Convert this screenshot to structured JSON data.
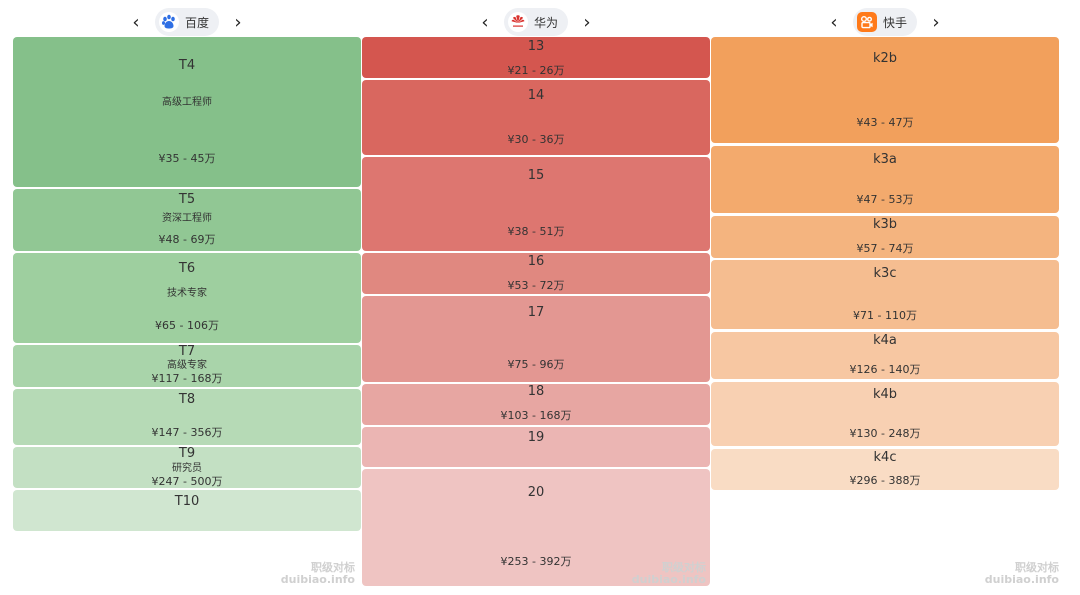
{
  "columns": [
    {
      "company": "百度",
      "logo_icon": "baidu-paw-icon",
      "accent": "#2f6fe4",
      "nav_prev": "‹",
      "nav_next": "›",
      "levels": [
        {
          "name": "T4",
          "title": "高级工程师",
          "salary": "¥35 - 45万",
          "color": "#85c08a"
        },
        {
          "name": "T5",
          "title": "资深工程师",
          "salary": "¥48 - 69万",
          "color": "#91c794"
        },
        {
          "name": "T6",
          "title": "技术专家",
          "salary": "¥65 - 106万",
          "color": "#9ecf9f"
        },
        {
          "name": "T7",
          "title": "高级专家",
          "salary": "¥117 - 168万",
          "color": "#a9d4aa"
        },
        {
          "name": "T8",
          "title": "",
          "salary": "¥147 - 356万",
          "color": "#b6dab6"
        },
        {
          "name": "T9",
          "title": "研究员",
          "salary": "¥247 - 500万",
          "color": "#c3e0c3"
        },
        {
          "name": "T10",
          "title": "",
          "salary": "",
          "color": "#d0e6d0"
        }
      ],
      "watermark": {
        "line1": "职级对标",
        "line2": "duibiao.info"
      }
    },
    {
      "company": "华为",
      "logo_icon": "huawei-flower-icon",
      "accent": "#d9332f",
      "nav_prev": "‹",
      "nav_next": "›",
      "levels": [
        {
          "name": "13",
          "title": "",
          "salary": "¥21 - 26万",
          "color": "#d4564f"
        },
        {
          "name": "14",
          "title": "",
          "salary": "¥30 - 36万",
          "color": "#d9675f"
        },
        {
          "name": "15",
          "title": "",
          "salary": "¥38 - 51万",
          "color": "#dd7670"
        },
        {
          "name": "16",
          "title": "",
          "salary": "¥53 - 72万",
          "color": "#e08880"
        },
        {
          "name": "17",
          "title": "",
          "salary": "¥75 - 96万",
          "color": "#e39792"
        },
        {
          "name": "18",
          "title": "",
          "salary": "¥103 - 168万",
          "color": "#e7a6a2"
        },
        {
          "name": "19",
          "title": "",
          "salary": "",
          "color": "#ebb5b3"
        },
        {
          "name": "20",
          "title": "",
          "salary": "¥253 - 392万",
          "color": "#efc4c2"
        }
      ],
      "watermark": {
        "line1": "职级对标",
        "line2": "duibiao.info"
      }
    },
    {
      "company": "快手",
      "logo_icon": "kuaishou-logo-icon",
      "accent": "#ff7a1a",
      "nav_prev": "‹",
      "nav_next": "›",
      "levels": [
        {
          "name": "k2b",
          "title": "",
          "salary": "¥43 - 47万",
          "color": "#f2a05c"
        },
        {
          "name": "k3a",
          "title": "",
          "salary": "¥47 - 53万",
          "color": "#f3aa6d"
        },
        {
          "name": "k3b",
          "title": "",
          "salary": "¥57 - 74万",
          "color": "#f4b47f"
        },
        {
          "name": "k3c",
          "title": "",
          "salary": "¥71 - 110万",
          "color": "#f5bd90"
        },
        {
          "name": "k4a",
          "title": "",
          "salary": "¥126 - 140万",
          "color": "#f7c7a2"
        },
        {
          "name": "k4b",
          "title": "",
          "salary": "¥130 - 248万",
          "color": "#f8d0b2"
        },
        {
          "name": "k4c",
          "title": "",
          "salary": "¥296 - 388万",
          "color": "#f9dcc4"
        }
      ],
      "watermark": {
        "line1": "职级对标",
        "line2": "duibiao.info"
      }
    }
  ]
}
